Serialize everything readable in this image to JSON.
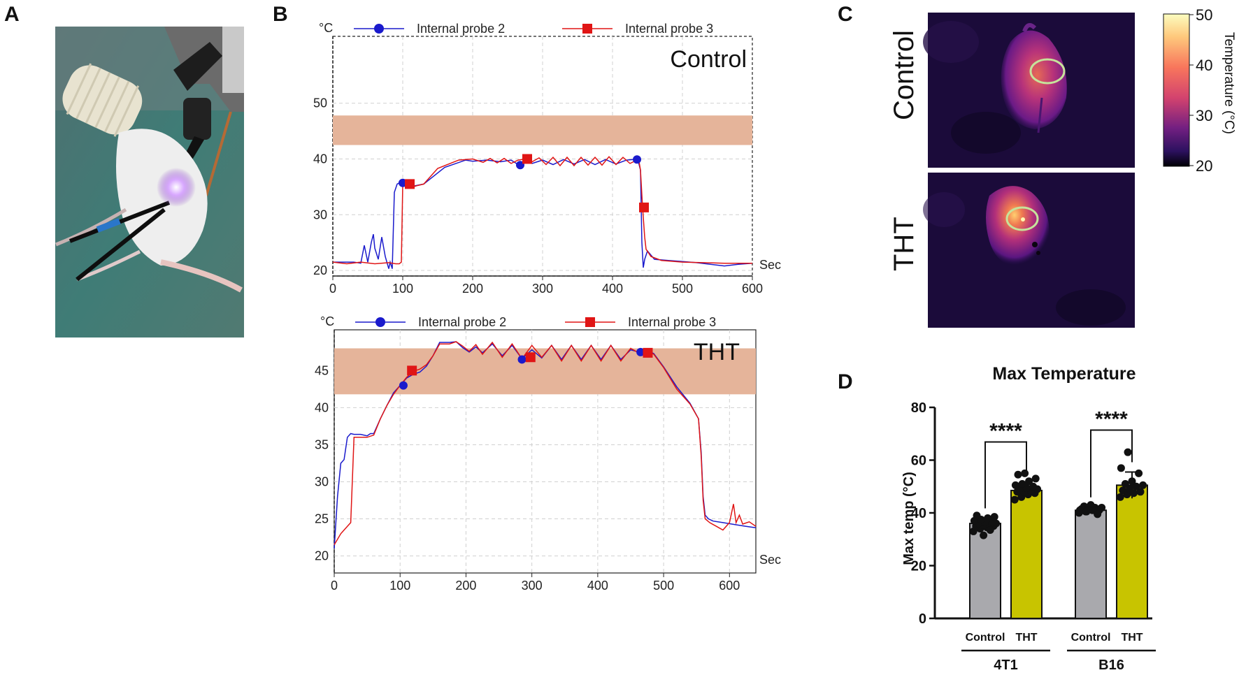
{
  "panels": {
    "a": "A",
    "b": "B",
    "c": "C",
    "d": "D"
  },
  "colors": {
    "probe2": "#1a1acc",
    "probe3": "#e01515",
    "band": "#e5b49a",
    "gray_bar": "#a9a9ad",
    "yellow_bar": "#c8c400"
  },
  "chart_data": [
    {
      "id": "control_probe_chart",
      "type": "line",
      "title": "Control",
      "ylabel": "°C",
      "xlabel": "Sec",
      "xlim": [
        0,
        600
      ],
      "ylim": [
        19,
        62
      ],
      "xticks": [
        0,
        100,
        200,
        300,
        400,
        500,
        600
      ],
      "yticks": [
        20,
        30,
        40,
        50
      ],
      "band": [
        42.5,
        47.8
      ],
      "legend": [
        "Internal probe 2",
        "Internal probe 3"
      ],
      "series": [
        {
          "name": "Internal probe 2",
          "x": [
            0,
            30,
            40,
            45,
            50,
            55,
            58,
            60,
            65,
            70,
            75,
            80,
            82,
            85,
            88,
            92,
            95,
            100,
            110,
            130,
            160,
            190,
            200,
            220,
            240,
            255,
            265,
            275,
            285,
            300,
            315,
            330,
            345,
            360,
            375,
            390,
            405,
            420,
            430,
            437,
            440,
            442,
            444,
            446,
            450,
            460,
            480,
            500,
            520,
            540,
            560,
            580,
            600
          ],
          "y": [
            21.5,
            21.5,
            21.3,
            24.5,
            21.5,
            25,
            26.5,
            24,
            22,
            26,
            22.5,
            20.3,
            21.5,
            20.3,
            34,
            35.5,
            35.7,
            35.7,
            35,
            35.5,
            38.5,
            39.8,
            39.6,
            39.8,
            39.5,
            39.8,
            39,
            39.8,
            39.2,
            39.8,
            39,
            39.9,
            39.1,
            39.9,
            39,
            39.9,
            39.1,
            39.8,
            39.9,
            39.5,
            38,
            25,
            20.5,
            22,
            23.5,
            22,
            21.8,
            21.6,
            21.4,
            21.1,
            20.8,
            21.1,
            21.3
          ]
        },
        {
          "name": "Internal probe 3",
          "x": [
            0,
            20,
            40,
            60,
            80,
            90,
            95,
            98,
            100,
            105,
            110,
            115,
            120,
            130,
            150,
            180,
            200,
            215,
            225,
            235,
            245,
            255,
            265,
            275,
            285,
            295,
            305,
            315,
            325,
            335,
            345,
            355,
            365,
            375,
            385,
            395,
            405,
            415,
            425,
            435,
            438,
            440,
            443,
            446,
            448,
            455,
            470,
            500,
            530,
            560,
            600
          ],
          "y": [
            21.5,
            21.2,
            21.5,
            21.2,
            21.4,
            21.2,
            21.2,
            21.5,
            35.5,
            35.5,
            35.5,
            35,
            35.2,
            35.5,
            38.3,
            39.8,
            40,
            39.4,
            40.1,
            39.3,
            40.1,
            39.2,
            39.8,
            40,
            39.5,
            40.2,
            39,
            40.3,
            38.8,
            40.3,
            38.8,
            40.3,
            38.9,
            40.3,
            38.9,
            40.4,
            39,
            40.3,
            39.2,
            39.8,
            39.5,
            38,
            31.3,
            26,
            23.8,
            22.5,
            21.8,
            21.5,
            21.4,
            21.3,
            21.3
          ]
        }
      ],
      "markers": [
        {
          "series": "Internal probe 2",
          "x": [
            100,
            268,
            435
          ],
          "y": [
            35.7,
            38.9,
            39.9
          ]
        },
        {
          "series": "Internal probe 3",
          "x": [
            110,
            278,
            445
          ],
          "y": [
            35.5,
            40.0,
            31.3
          ]
        }
      ]
    },
    {
      "id": "tht_probe_chart",
      "type": "line",
      "title": "THT",
      "ylabel": "°C",
      "xlabel": "Sec",
      "xlim": [
        0,
        640
      ],
      "ylim": [
        17.7,
        50.5
      ],
      "xticks": [
        0,
        100,
        200,
        300,
        400,
        500,
        600
      ],
      "yticks": [
        20,
        25,
        30,
        35,
        40,
        45
      ],
      "band": [
        41.8,
        48
      ],
      "legend": [
        "Internal probe 2",
        "Internal probe 3"
      ],
      "series": [
        {
          "name": "Internal probe 2",
          "x": [
            0,
            5,
            10,
            15,
            20,
            25,
            30,
            40,
            50,
            55,
            60,
            70,
            80,
            90,
            100,
            110,
            120,
            130,
            140,
            150,
            160,
            175,
            185,
            195,
            205,
            215,
            225,
            240,
            255,
            270,
            285,
            300,
            315,
            330,
            345,
            360,
            375,
            390,
            405,
            420,
            435,
            450,
            462,
            470,
            478,
            485,
            500,
            520,
            540,
            553,
            557,
            560,
            563,
            568,
            575,
            590,
            610,
            625,
            640
          ],
          "y": [
            21,
            28,
            32.5,
            33,
            36,
            36.5,
            36.4,
            36.4,
            36.2,
            36.5,
            36.5,
            38.5,
            40.3,
            42,
            43,
            44,
            44.5,
            44.8,
            45.6,
            47,
            48.8,
            48.8,
            48.9,
            48.1,
            47.5,
            48.2,
            47.4,
            48.6,
            47,
            48.4,
            46.6,
            47.8,
            46.7,
            48.4,
            46.5,
            48.4,
            46.5,
            48.4,
            46.5,
            48.4,
            46.5,
            47.8,
            47.5,
            47.5,
            47.6,
            47.3,
            45.5,
            42.8,
            40.6,
            38.5,
            34,
            28,
            25.5,
            25,
            24.7,
            24.5,
            24.2,
            24,
            23.8
          ]
        },
        {
          "name": "Internal probe 3",
          "x": [
            0,
            10,
            15,
            20,
            25,
            30,
            40,
            50,
            60,
            70,
            80,
            90,
            100,
            110,
            120,
            130,
            140,
            150,
            160,
            175,
            185,
            195,
            205,
            215,
            225,
            240,
            255,
            270,
            285,
            300,
            315,
            330,
            345,
            360,
            375,
            390,
            405,
            420,
            435,
            450,
            462,
            470,
            478,
            485,
            500,
            520,
            540,
            553,
            557,
            560,
            563,
            570,
            580,
            590,
            600,
            606,
            610,
            615,
            620,
            630,
            640
          ],
          "y": [
            21.5,
            23,
            23.5,
            24,
            24.5,
            36,
            36,
            36,
            36.3,
            38.5,
            40.3,
            41.8,
            43,
            44.1,
            44.9,
            45.2,
            45.8,
            47,
            48.6,
            48.6,
            48.9,
            48.3,
            47.6,
            48.5,
            47.2,
            48.8,
            46.8,
            48.6,
            46.6,
            48.4,
            46.8,
            48.4,
            46.3,
            48.4,
            46.3,
            48.4,
            46.3,
            48.4,
            46.3,
            48,
            47.4,
            47.6,
            47.5,
            47.2,
            45.4,
            42.5,
            40.5,
            38.5,
            33.5,
            27.5,
            25,
            24.5,
            24,
            23.5,
            24.5,
            27,
            24.5,
            25.5,
            24.3,
            24.6,
            24
          ]
        }
      ],
      "markers": [
        {
          "series": "Internal probe 2",
          "x": [
            105,
            285,
            465
          ],
          "y": [
            43,
            46.5,
            47.5
          ]
        },
        {
          "series": "Internal probe 3",
          "x": [
            118,
            298,
            476
          ],
          "y": [
            45,
            46.8,
            47.4
          ]
        }
      ]
    },
    {
      "id": "max_temp_chart",
      "type": "bar",
      "title": "Max Temperature",
      "ylabel": "Max temp (°C)",
      "ylim": [
        0,
        80
      ],
      "yticks": [
        0,
        20,
        40,
        60,
        80
      ],
      "groups": [
        "4T1",
        "B16"
      ],
      "categories": [
        "Control",
        "THT"
      ],
      "significance": [
        "****",
        "****"
      ],
      "series": [
        {
          "name": "Control",
          "values": [
            36,
            41
          ],
          "sd": [
            2,
            1.2
          ],
          "points": [
            [
              33,
              34,
              34.5,
              35,
              35,
              35.5,
              35.5,
              36,
              36,
              36.5,
              36.5,
              37,
              37.5,
              38,
              38.5,
              39,
              31.5,
              33.5
            ],
            [
              40,
              40.5,
              41,
              41,
              41.5,
              41.5,
              42,
              42,
              42.5,
              43,
              39.5,
              41,
              40.5
            ]
          ]
        },
        {
          "name": "THT",
          "values": [
            48.5,
            50.5
          ],
          "sd": [
            2.5,
            5
          ],
          "points": [
            [
              45,
              46,
              47,
              47.5,
              48,
              48,
              48.5,
              49,
              49,
              49.5,
              50,
              50.5,
              51,
              52,
              53,
              54.5,
              55
            ],
            [
              46,
              47,
              47.5,
              48,
              48.5,
              49,
              50,
              50.5,
              51,
              52,
              55,
              57,
              63
            ]
          ]
        }
      ]
    }
  ],
  "panel_b": {
    "control": {
      "ylabel": "°C",
      "xlabel": "Sec",
      "title": "Control",
      "legend_p2": "Internal probe 2",
      "legend_p3": "Internal probe 3"
    },
    "tht": {
      "ylabel": "°C",
      "xlabel": "Sec",
      "title": "THT",
      "legend_p2": "Internal probe 2",
      "legend_p3": "Internal probe 3"
    }
  },
  "panel_c": {
    "row_labels": [
      "Control",
      "THT"
    ],
    "colorbar": {
      "title": "Temperature (°C)",
      "ticks": [
        50,
        40,
        30,
        20
      ]
    }
  },
  "panel_d": {
    "title": "Max Temperature",
    "ylabel": "Max temp (°C)",
    "stars": "****",
    "groups": [
      "4T1",
      "B16"
    ],
    "categories": [
      "Control",
      "THT"
    ]
  }
}
